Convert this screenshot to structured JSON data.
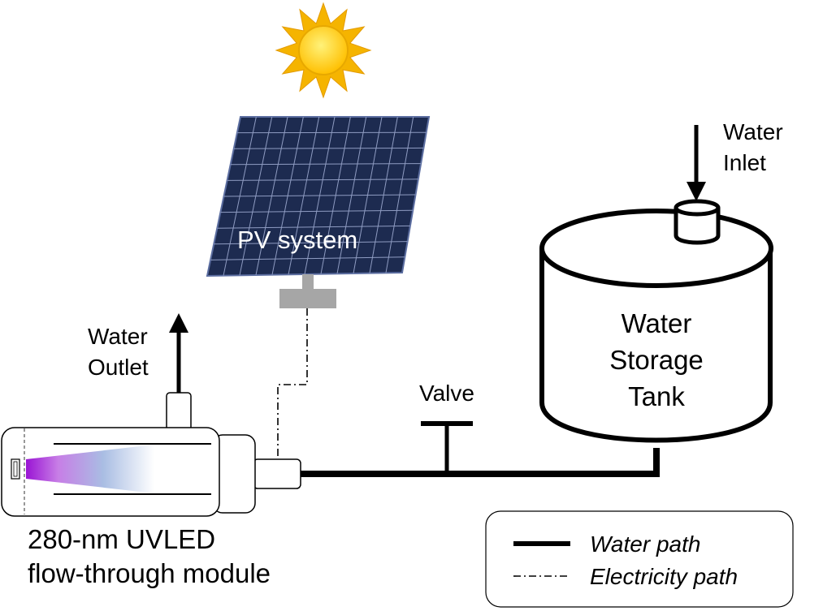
{
  "labels": {
    "pv_system": "PV system",
    "water_inlet_line1": "Water",
    "water_inlet_line2": "Inlet",
    "water_outlet_line1": "Water",
    "water_outlet_line2": "Outlet",
    "tank_line1": "Water",
    "tank_line2": "Storage",
    "tank_line3": "Tank",
    "valve": "Valve",
    "module_line1": "280-nm UVLED",
    "module_line2": "flow-through module"
  },
  "legend": {
    "water_path": "Water path",
    "electricity_path": "Electricity path"
  },
  "icons": [
    "sun-icon",
    "solar-panel-icon"
  ],
  "colors": {
    "panel_fill": "#1c2a4f",
    "panel_grid": "#9aa6c6",
    "sun_rays": "#f6b400",
    "sun_core": "#ffcf1a",
    "mount": "#a6a6a6",
    "uv_start": "#a21fd6",
    "uv_mid": "#9fb8e0",
    "stroke": "#000000"
  }
}
